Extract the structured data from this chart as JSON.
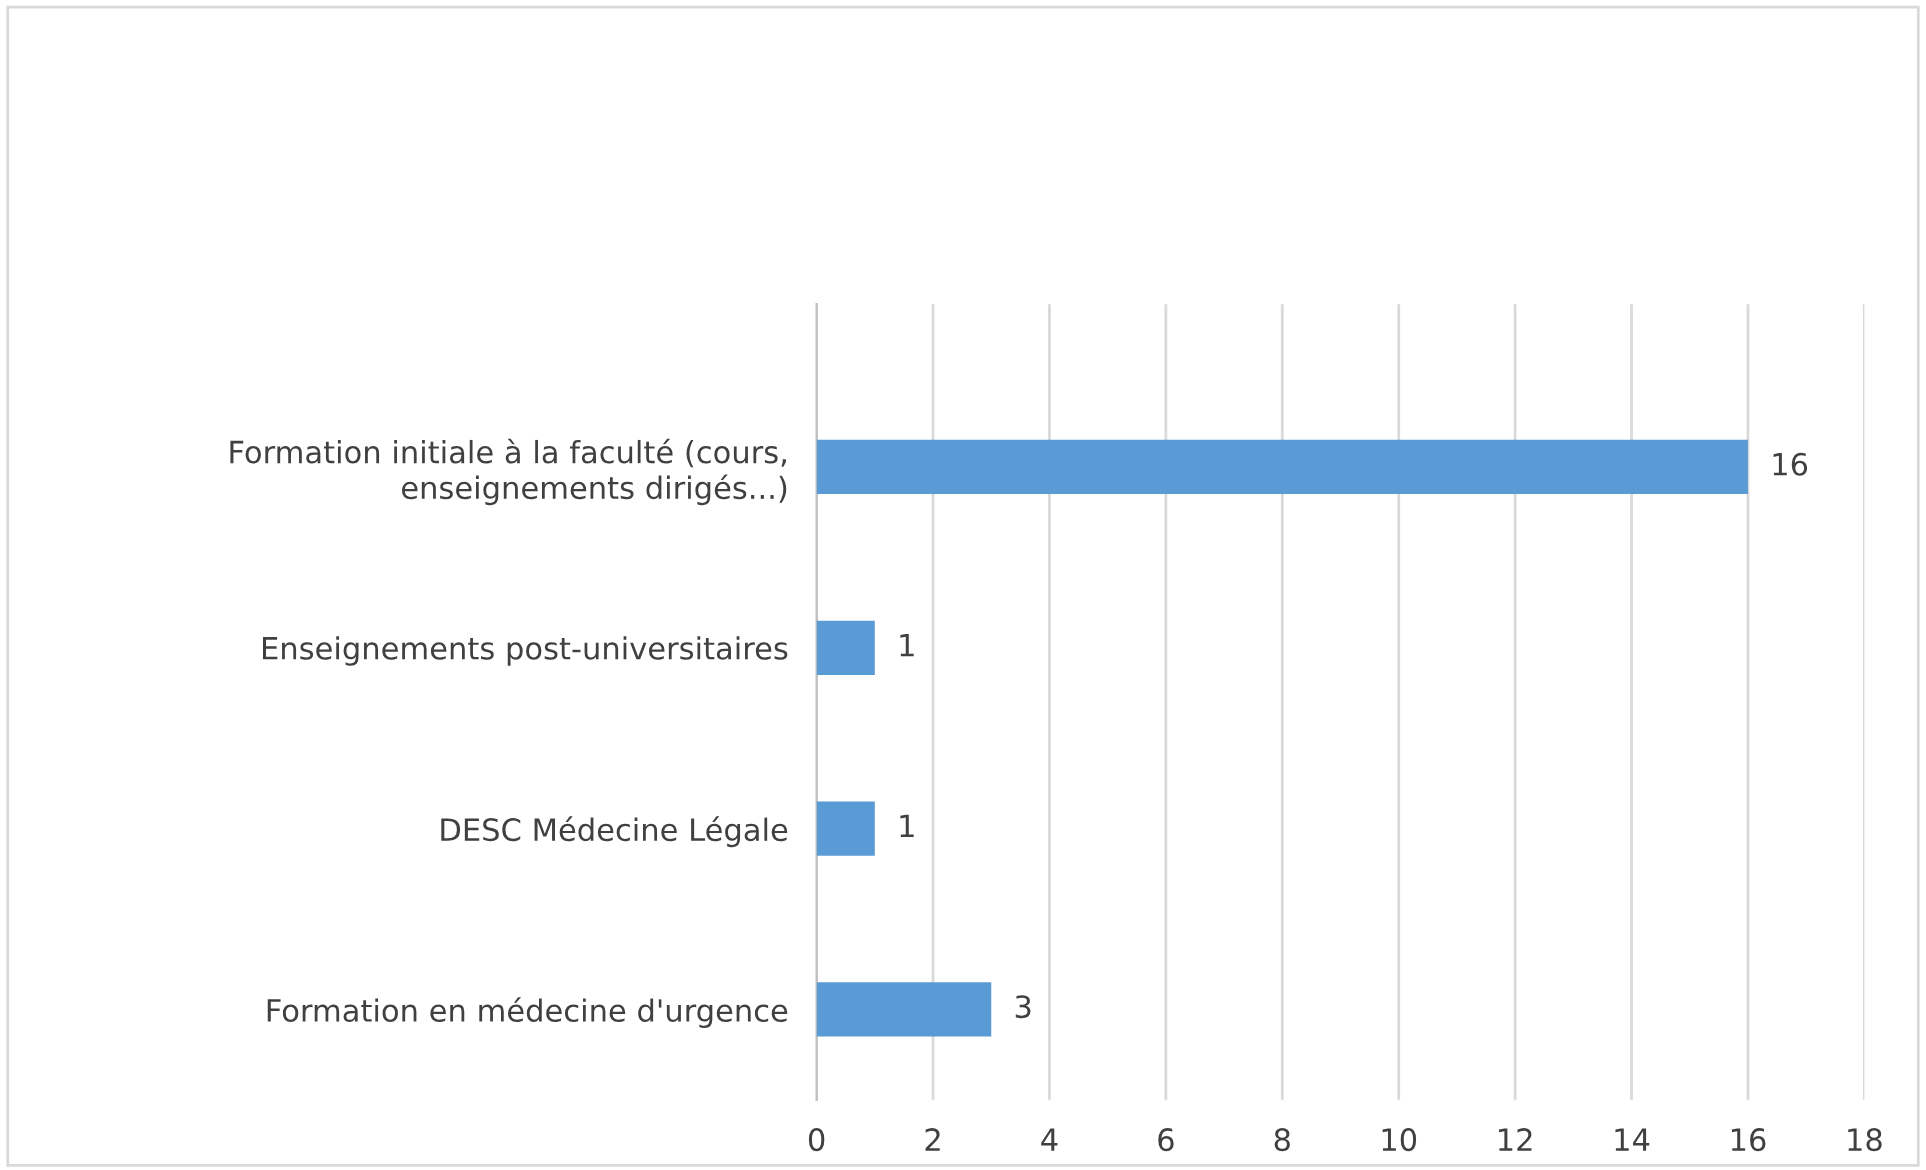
{
  "chart_data": {
    "type": "bar",
    "orientation": "horizontal",
    "categories": [
      "Formation initiale à la faculté (cours,\nenseignements dirigés...)",
      "Enseignements post-universitaires",
      "DESC Médecine Légale",
      "Formation en médecine d'urgence"
    ],
    "values": [
      16,
      1,
      1,
      3
    ],
    "color": "#5b9bd5",
    "xlim": [
      0,
      18
    ],
    "xticks": [
      0,
      2,
      4,
      6,
      8,
      10,
      12,
      14,
      16,
      18
    ],
    "grid": "x",
    "data_labels": true
  }
}
